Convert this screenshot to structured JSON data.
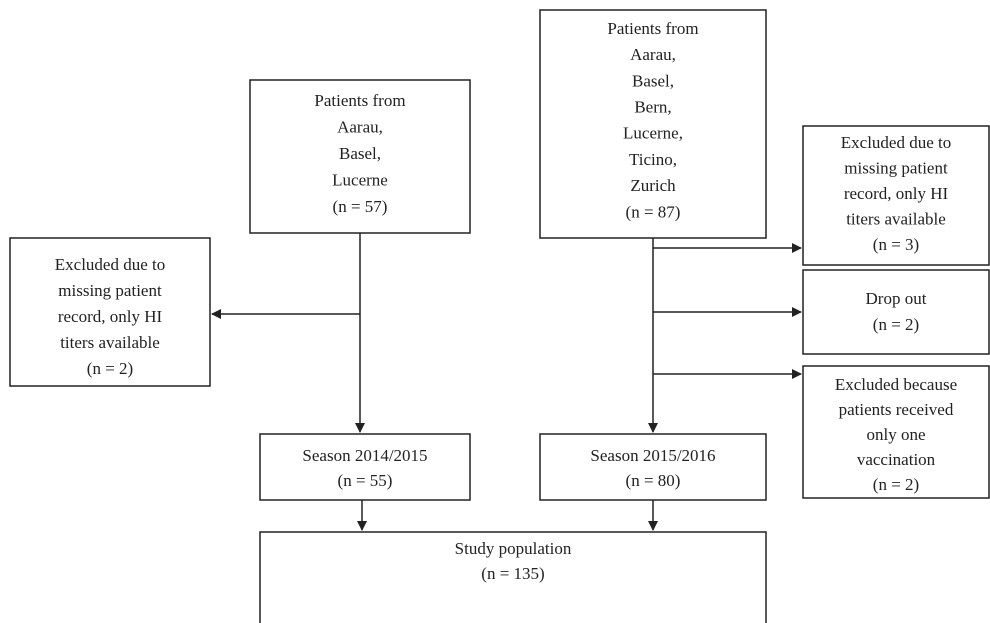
{
  "nodes": [
    {
      "lines": [
        "Patients from",
        "Aarau,",
        "Basel,",
        "Lucerne",
        "(n = 57)"
      ]
    },
    {
      "lines": [
        "Patients from",
        "Aarau,",
        "Basel,",
        "Bern,",
        "Lucerne,",
        "Ticino,",
        "Zurich",
        "(n = 87)"
      ]
    },
    {
      "lines": [
        "Excluded due to",
        "missing patient",
        "record, only HI",
        "titers available",
        "(n = 2)"
      ]
    },
    {
      "lines": [
        "Excluded due to",
        "missing patient",
        "record, only HI",
        "titers available",
        "(n = 3)"
      ]
    },
    {
      "lines": [
        "Drop out",
        "(n = 2)"
      ]
    },
    {
      "lines": [
        "Excluded because",
        "patients received",
        "only one",
        "vaccination",
        "(n = 2)"
      ]
    },
    {
      "lines": [
        "Season 2014/2015",
        "(n = 55)"
      ]
    },
    {
      "lines": [
        "Season 2015/2016",
        "(n = 80)"
      ]
    },
    {
      "lines": [
        "Study population",
        "(n = 135)"
      ]
    }
  ]
}
